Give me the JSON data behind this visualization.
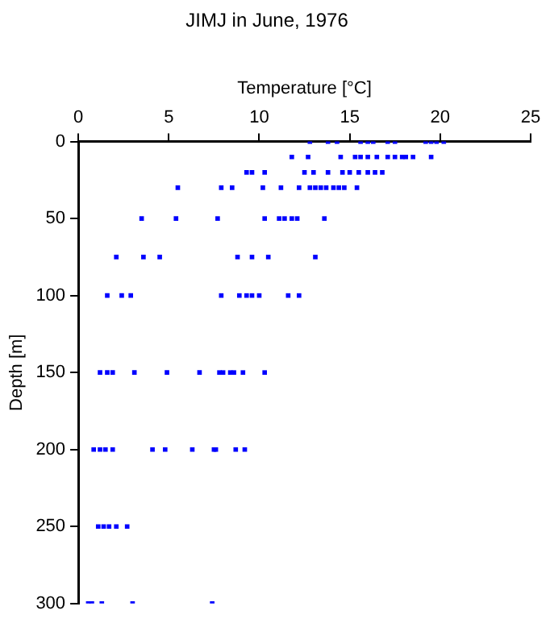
{
  "chart_data": {
    "type": "scatter",
    "title": "JIMJ in June, 1976",
    "xlabel": "Temperature [°C]",
    "ylabel": "Depth [m]",
    "xlim": [
      0,
      25
    ],
    "xticks": [
      0,
      5,
      10,
      15,
      20,
      25
    ],
    "ylim": [
      300,
      0
    ],
    "yticks": [
      0,
      50,
      100,
      150,
      200,
      250,
      300
    ],
    "grid": false,
    "legend": false,
    "marker": "square",
    "series": [
      {
        "color": "#0000ff",
        "x": [
          12.8,
          13.8,
          14.3,
          15.6,
          16.0,
          16.3,
          17.1,
          17.5,
          19.2,
          19.5,
          19.8,
          20.2,
          11.8,
          12.7,
          14.5,
          15.3,
          15.6,
          16.0,
          16.5,
          17.1,
          17.5,
          17.9,
          18.1,
          18.5,
          19.5,
          9.3,
          9.6,
          10.3,
          12.5,
          13.0,
          13.8,
          14.6,
          15.0,
          15.5,
          16.0,
          16.4,
          16.8,
          5.5,
          7.9,
          8.5,
          10.2,
          11.2,
          12.2,
          12.8,
          13.1,
          13.4,
          13.7,
          14.1,
          14.4,
          14.7,
          15.4,
          3.5,
          5.4,
          7.7,
          10.3,
          11.1,
          11.4,
          11.8,
          12.1,
          13.6,
          2.1,
          3.6,
          4.5,
          8.8,
          9.6,
          10.5,
          13.1,
          1.6,
          2.4,
          2.9,
          7.9,
          8.9,
          9.3,
          9.6,
          10.0,
          11.6,
          12.2,
          1.2,
          1.6,
          1.9,
          3.1,
          4.9,
          6.7,
          7.8,
          8.0,
          8.4,
          8.6,
          9.1,
          10.3,
          0.85,
          1.2,
          1.5,
          1.9,
          4.1,
          4.8,
          6.3,
          7.5,
          7.6,
          8.7,
          9.2,
          1.1,
          1.4,
          1.7,
          2.1,
          2.7,
          0.55,
          0.75,
          1.3,
          3.0,
          7.4
        ],
        "values": [
          0,
          0,
          0,
          0,
          0,
          0,
          0,
          0,
          0,
          0,
          0,
          0,
          10,
          10,
          10,
          10,
          10,
          10,
          10,
          10,
          10,
          10,
          10,
          10,
          10,
          20,
          20,
          20,
          20,
          20,
          20,
          20,
          20,
          20,
          20,
          20,
          20,
          30,
          30,
          30,
          30,
          30,
          30,
          30,
          30,
          30,
          30,
          30,
          30,
          30,
          30,
          50,
          50,
          50,
          50,
          50,
          50,
          50,
          50,
          50,
          75,
          75,
          75,
          75,
          75,
          75,
          75,
          100,
          100,
          100,
          100,
          100,
          100,
          100,
          100,
          100,
          100,
          150,
          150,
          150,
          150,
          150,
          150,
          150,
          150,
          150,
          150,
          150,
          150,
          200,
          200,
          200,
          200,
          200,
          200,
          200,
          200,
          200,
          200,
          200,
          250,
          250,
          250,
          250,
          250,
          300,
          300,
          300,
          300,
          300
        ]
      }
    ]
  }
}
